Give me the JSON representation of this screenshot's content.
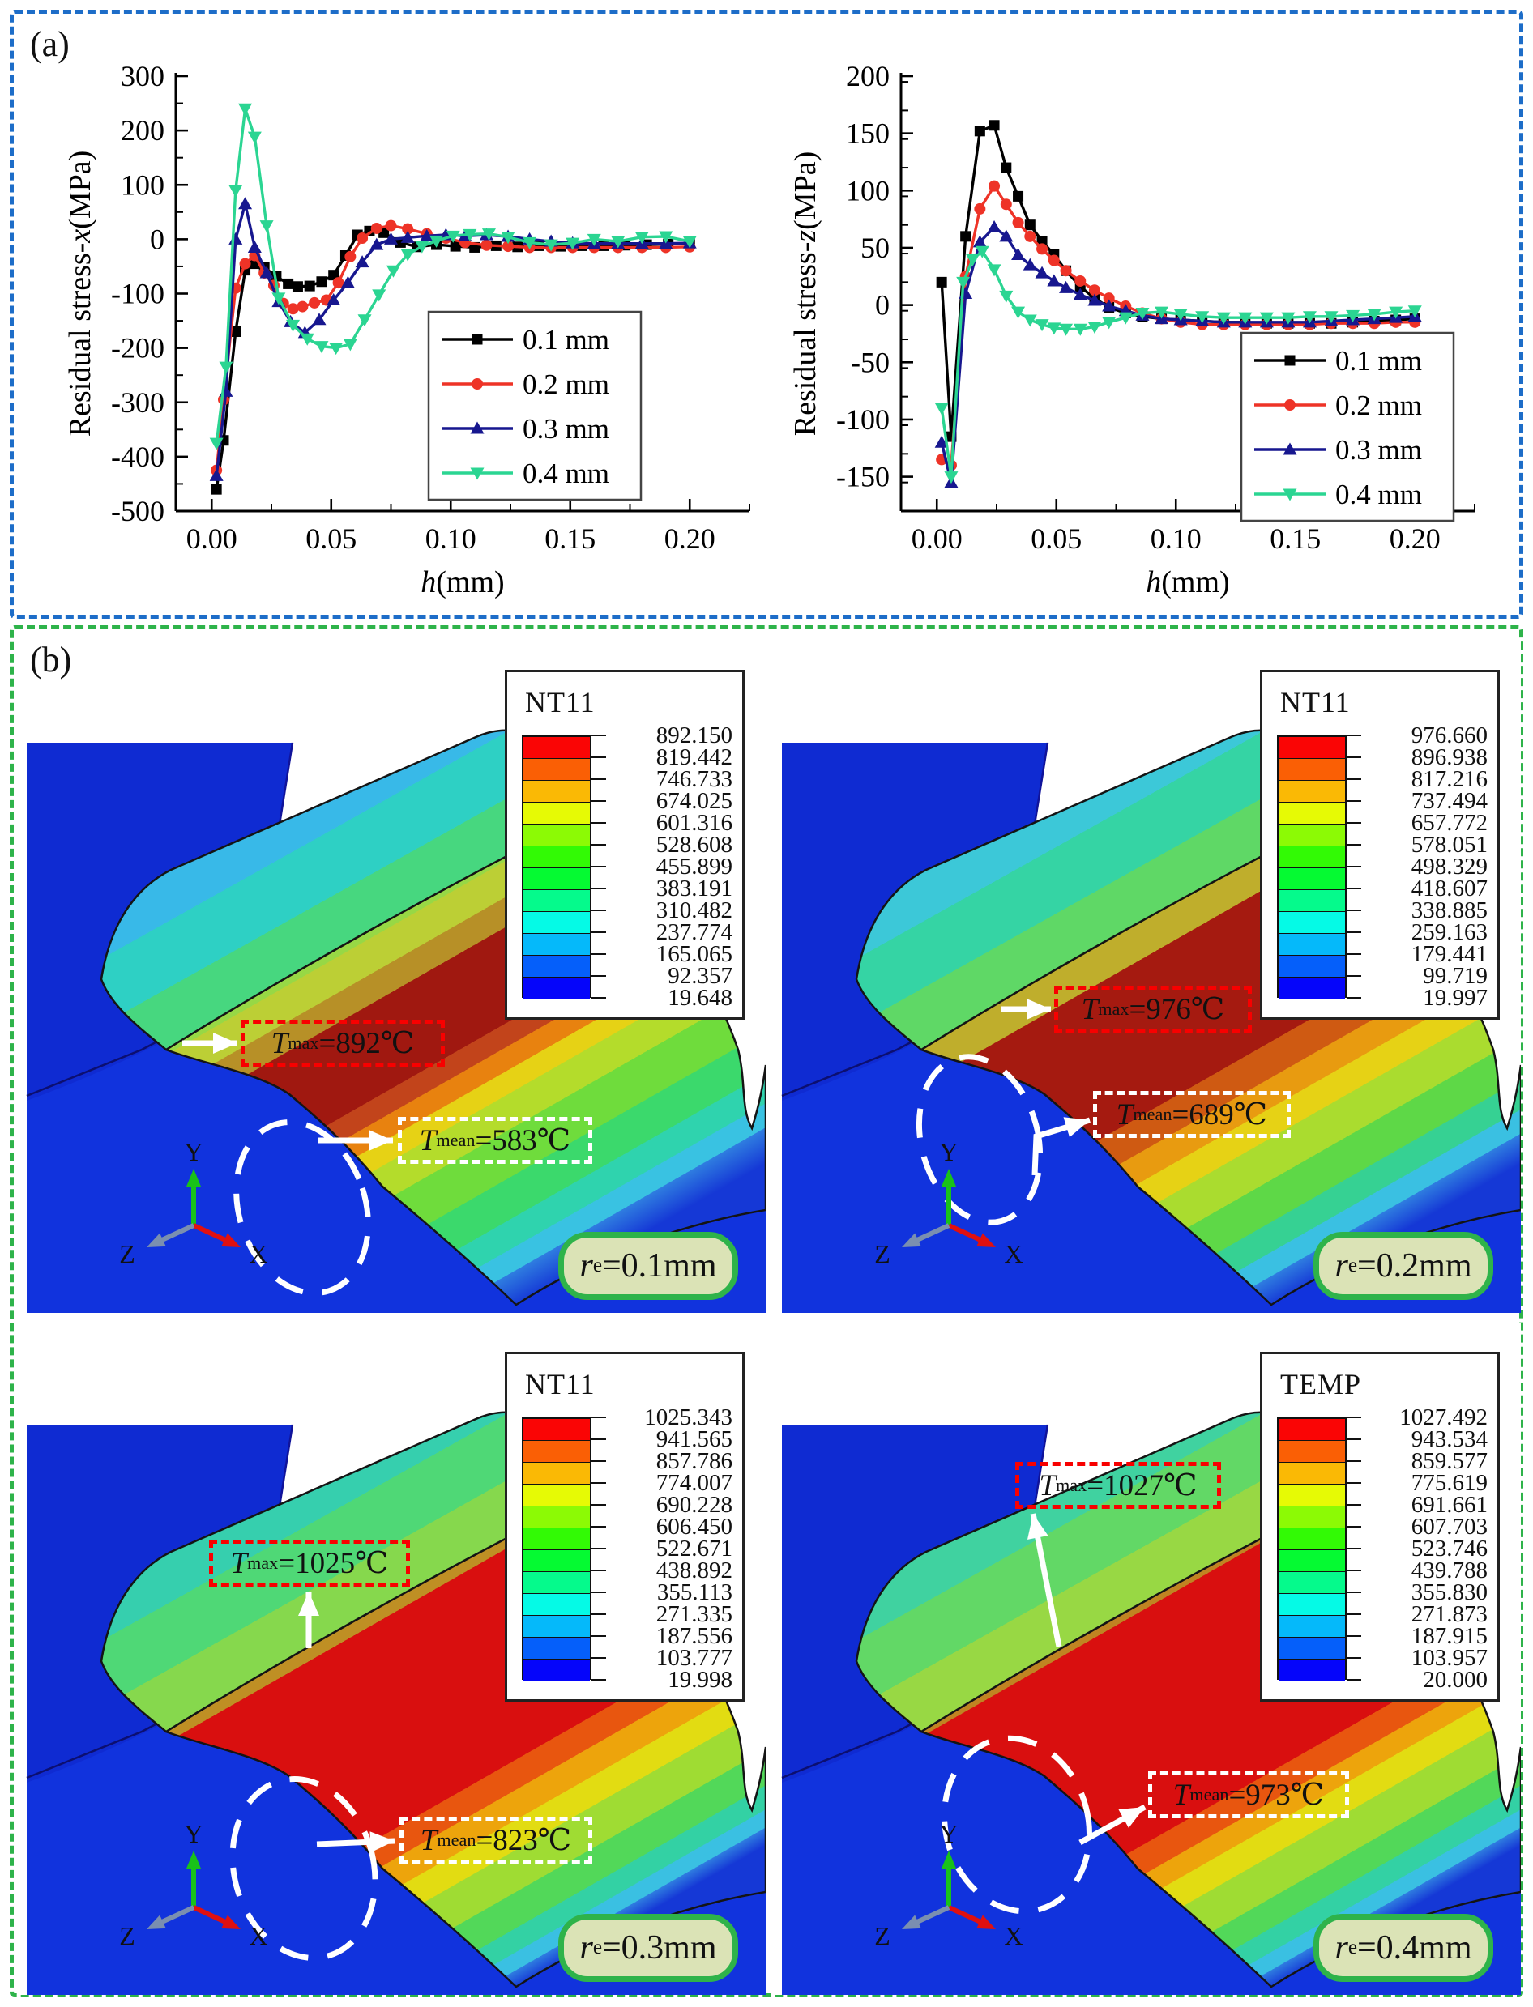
{
  "colors": {
    "panel_a_border": "#1d6dc8",
    "panel_b_border": "#2eb34a",
    "series": [
      "#000000",
      "#ee3327",
      "#17178f",
      "#2bd592"
    ],
    "badge_fill": "#dbe3b6",
    "badge_border": "#2eb34a",
    "tmax_box_border": "#f80000",
    "contour_blue": "#1133dd"
  },
  "panel_a": {
    "label": "(a)"
  },
  "panel_b": {
    "label": "(b)",
    "subplots": [
      {
        "legend_title": "NT11",
        "legend_values": [
          "892.150",
          "819.442",
          "746.733",
          "674.025",
          "601.316",
          "528.608",
          "455.899",
          "383.191",
          "310.482",
          "237.774",
          "165.065",
          "92.357",
          "19.648"
        ],
        "tmax": {
          "T": "T",
          "sub": "max",
          "rest": "=892℃"
        },
        "tmean": {
          "T": "T",
          "sub": "mean",
          "rest": "=583℃"
        },
        "badge": {
          "r": "r",
          "sub": "e",
          "rest": "=0.1mm"
        },
        "axes": {
          "x": "X",
          "y": "Y",
          "z": "Z"
        }
      },
      {
        "legend_title": "NT11",
        "legend_values": [
          "976.660",
          "896.938",
          "817.216",
          "737.494",
          "657.772",
          "578.051",
          "498.329",
          "418.607",
          "338.885",
          "259.163",
          "179.441",
          "99.719",
          "19.997"
        ],
        "tmax": {
          "T": "T",
          "sub": "max",
          "rest": "=976℃"
        },
        "tmean": {
          "T": "T",
          "sub": "mean",
          "rest": "=689℃"
        },
        "badge": {
          "r": "r",
          "sub": "e",
          "rest": "=0.2mm"
        },
        "axes": {
          "x": "X",
          "y": "Y",
          "z": "Z"
        }
      },
      {
        "legend_title": "NT11",
        "legend_values": [
          "1025.343",
          "941.565",
          "857.786",
          "774.007",
          "690.228",
          "606.450",
          "522.671",
          "438.892",
          "355.113",
          "271.335",
          "187.556",
          "103.777",
          "19.998"
        ],
        "tmax": {
          "T": "T",
          "sub": "max",
          "rest": "=1025℃"
        },
        "tmean": {
          "T": "T",
          "sub": "mean",
          "rest": "=823℃"
        },
        "badge": {
          "r": "r",
          "sub": "e",
          "rest": "=0.3mm"
        },
        "axes": {
          "x": "X",
          "y": "Y",
          "z": "Z"
        }
      },
      {
        "legend_title": "TEMP",
        "legend_values": [
          "1027.492",
          "943.534",
          "859.577",
          "775.619",
          "691.661",
          "607.703",
          "523.746",
          "439.788",
          "355.830",
          "271.873",
          "187.915",
          "103.957",
          "20.000"
        ],
        "tmax": {
          "T": "T",
          "sub": "max",
          "rest": "=1027℃"
        },
        "tmean": {
          "T": "T",
          "sub": "mean",
          "rest": "=973℃"
        },
        "badge": {
          "r": "r",
          "sub": "e",
          "rest": "=0.4mm"
        },
        "axes": {
          "x": "X",
          "y": "Y",
          "z": "Z"
        }
      }
    ]
  },
  "chart_data": [
    {
      "type": "line",
      "title": "",
      "ylabel_parts": {
        "prefix": "Residual stress-",
        "var": "x",
        "suffix": "(MPa)"
      },
      "xlabel_parts": {
        "var": "h",
        "suffix": "(mm)"
      },
      "xlim": [
        -0.015,
        0.225
      ],
      "ylim": [
        -500,
        300
      ],
      "xticks": [
        0.0,
        0.05,
        0.1,
        0.15,
        0.2
      ],
      "yticks": [
        300,
        200,
        100,
        0,
        -100,
        -200,
        -300,
        -400,
        -500
      ],
      "x_minor_step": 0.025,
      "y_minor_step": 50,
      "grid": false,
      "legend_position": "right-middle",
      "series": [
        {
          "name": "0.1 mm",
          "marker": "square",
          "x": [
            0.002,
            0.005,
            0.01,
            0.014,
            0.018,
            0.022,
            0.027,
            0.032,
            0.036,
            0.041,
            0.046,
            0.051,
            0.056,
            0.061,
            0.066,
            0.072,
            0.079,
            0.086,
            0.094,
            0.102,
            0.11,
            0.119,
            0.128,
            0.137,
            0.146,
            0.155,
            0.164,
            0.173,
            0.182,
            0.191,
            0.2
          ],
          "y": [
            -460,
            -370,
            -170,
            -57,
            -45,
            -52,
            -68,
            -82,
            -87,
            -86,
            -78,
            -66,
            -30,
            8,
            15,
            12,
            -6,
            -14,
            -10,
            -13,
            -15,
            -12,
            -14,
            -12,
            -13,
            -12,
            -12,
            -11,
            -10,
            -9,
            -8
          ]
        },
        {
          "name": "0.2 mm",
          "marker": "circle",
          "x": [
            0.002,
            0.005,
            0.01,
            0.014,
            0.018,
            0.022,
            0.026,
            0.03,
            0.034,
            0.038,
            0.043,
            0.048,
            0.053,
            0.058,
            0.063,
            0.069,
            0.075,
            0.082,
            0.09,
            0.098,
            0.106,
            0.115,
            0.124,
            0.133,
            0.142,
            0.151,
            0.16,
            0.17,
            0.18,
            0.19,
            0.2
          ],
          "y": [
            -425,
            -295,
            -90,
            -45,
            -30,
            -62,
            -85,
            -118,
            -128,
            -124,
            -117,
            -112,
            -80,
            -32,
            2,
            20,
            25,
            19,
            10,
            2,
            -6,
            -11,
            -13,
            -15,
            -15,
            -15,
            -15,
            -15,
            -15,
            -15,
            -14
          ]
        },
        {
          "name": "0.3 mm",
          "marker": "triangle-up",
          "x": [
            0.002,
            0.006,
            0.01,
            0.014,
            0.018,
            0.023,
            0.028,
            0.033,
            0.039,
            0.045,
            0.051,
            0.057,
            0.063,
            0.069,
            0.075,
            0.082,
            0.09,
            0.098,
            0.106,
            0.115,
            0.124,
            0.133,
            0.142,
            0.151,
            0.16,
            0.17,
            0.18,
            0.19,
            0.2
          ],
          "y": [
            -435,
            -280,
            0,
            65,
            -15,
            -62,
            -115,
            -152,
            -172,
            -148,
            -112,
            -80,
            -42,
            -10,
            0,
            3,
            6,
            8,
            6,
            8,
            5,
            0,
            -4,
            -7,
            -8,
            -8,
            -8,
            -8,
            -7
          ]
        },
        {
          "name": "0.4 mm",
          "marker": "triangle-down",
          "x": [
            0.002,
            0.006,
            0.01,
            0.014,
            0.018,
            0.023,
            0.028,
            0.034,
            0.04,
            0.046,
            0.052,
            0.058,
            0.064,
            0.07,
            0.076,
            0.082,
            0.088,
            0.094,
            0.101,
            0.108,
            0.116,
            0.124,
            0.133,
            0.142,
            0.151,
            0.16,
            0.17,
            0.18,
            0.19,
            0.2
          ],
          "y": [
            -375,
            -235,
            90,
            240,
            188,
            25,
            -108,
            -158,
            -183,
            -197,
            -200,
            -193,
            -148,
            -102,
            -58,
            -28,
            -13,
            -3,
            6,
            9,
            10,
            4,
            -6,
            -10,
            -7,
            0,
            -4,
            4,
            5,
            -4
          ]
        }
      ]
    },
    {
      "type": "line",
      "title": "",
      "ylabel_parts": {
        "prefix": "Residual stress-",
        "var": "z",
        "suffix": "(MPa)"
      },
      "xlabel_parts": {
        "var": "h",
        "suffix": "(mm)"
      },
      "xlim": [
        -0.015,
        0.225
      ],
      "ylim": [
        -180,
        200
      ],
      "xticks": [
        0.0,
        0.05,
        0.1,
        0.15,
        0.2
      ],
      "yticks": [
        200,
        150,
        100,
        50,
        0,
        -50,
        -100,
        -150
      ],
      "x_minor_step": 0.025,
      "y_minor_step": 25,
      "grid": false,
      "legend_position": "right-bottom",
      "series": [
        {
          "name": "0.1 mm",
          "marker": "square",
          "x": [
            0.002,
            0.006,
            0.012,
            0.018,
            0.024,
            0.029,
            0.034,
            0.039,
            0.044,
            0.049,
            0.054,
            0.06,
            0.066,
            0.072,
            0.079,
            0.086,
            0.094,
            0.102,
            0.111,
            0.12,
            0.129,
            0.138,
            0.147,
            0.156,
            0.165,
            0.174,
            0.183,
            0.192,
            0.2
          ],
          "y": [
            20,
            -115,
            60,
            152,
            157,
            120,
            95,
            70,
            56,
            44,
            30,
            16,
            6,
            -2,
            -7,
            -10,
            -12,
            -13,
            -14,
            -15,
            -15,
            -16,
            -16,
            -16,
            -16,
            -15,
            -14,
            -13,
            -12
          ]
        },
        {
          "name": "0.2 mm",
          "marker": "circle",
          "x": [
            0.002,
            0.006,
            0.012,
            0.018,
            0.024,
            0.029,
            0.034,
            0.039,
            0.044,
            0.049,
            0.054,
            0.06,
            0.066,
            0.072,
            0.079,
            0.086,
            0.094,
            0.102,
            0.111,
            0.12,
            0.129,
            0.138,
            0.147,
            0.156,
            0.165,
            0.174,
            0.183,
            0.192,
            0.2
          ],
          "y": [
            -135,
            -140,
            25,
            84,
            104,
            88,
            72,
            60,
            49,
            39,
            30,
            21,
            13,
            6,
            -1,
            -7,
            -12,
            -15,
            -17,
            -17,
            -17,
            -17,
            -17,
            -17,
            -16,
            -16,
            -16,
            -15,
            -15
          ]
        },
        {
          "name": "0.3 mm",
          "marker": "triangle-up",
          "x": [
            0.002,
            0.006,
            0.012,
            0.018,
            0.024,
            0.029,
            0.034,
            0.039,
            0.044,
            0.049,
            0.054,
            0.06,
            0.066,
            0.072,
            0.079,
            0.086,
            0.094,
            0.102,
            0.111,
            0.12,
            0.129,
            0.138,
            0.147,
            0.156,
            0.165,
            0.174,
            0.183,
            0.192,
            0.2
          ],
          "y": [
            -120,
            -155,
            10,
            55,
            68,
            60,
            44,
            35,
            28,
            21,
            15,
            9,
            4,
            -1,
            -5,
            -9,
            -12,
            -13,
            -14,
            -15,
            -15,
            -15,
            -15,
            -15,
            -14,
            -13,
            -12,
            -11,
            -10
          ]
        },
        {
          "name": "0.4 mm",
          "marker": "triangle-down",
          "x": [
            0.002,
            0.006,
            0.011,
            0.015,
            0.019,
            0.024,
            0.029,
            0.034,
            0.039,
            0.044,
            0.049,
            0.054,
            0.06,
            0.066,
            0.072,
            0.079,
            0.086,
            0.094,
            0.102,
            0.111,
            0.12,
            0.129,
            0.138,
            0.147,
            0.156,
            0.165,
            0.174,
            0.183,
            0.192,
            0.2
          ],
          "y": [
            -90,
            -150,
            20,
            40,
            47,
            31,
            8,
            -6,
            -13,
            -17,
            -20,
            -21,
            -21,
            -19,
            -15,
            -11,
            -7,
            -6,
            -8,
            -10,
            -11,
            -11,
            -11,
            -11,
            -10,
            -10,
            -9,
            -8,
            -6,
            -5
          ]
        }
      ]
    }
  ]
}
